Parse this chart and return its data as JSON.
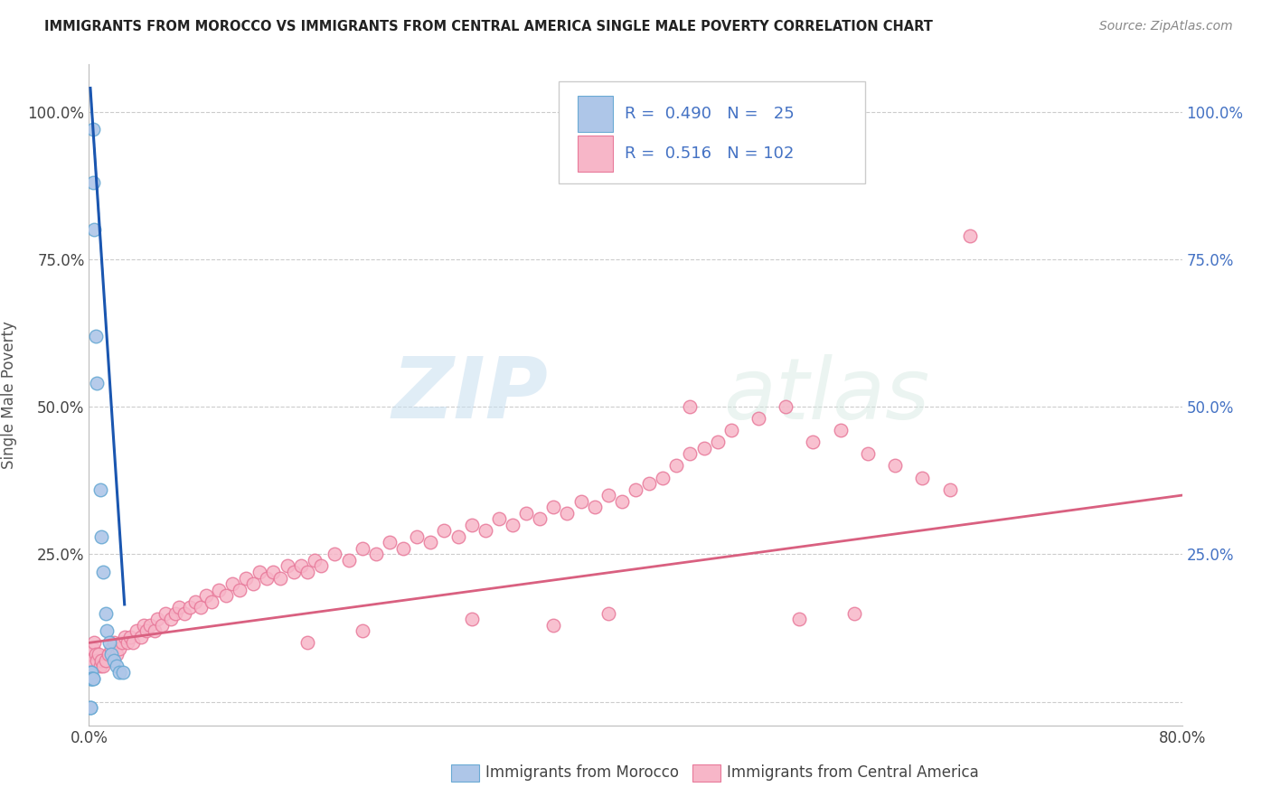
{
  "title": "IMMIGRANTS FROM MOROCCO VS IMMIGRANTS FROM CENTRAL AMERICA SINGLE MALE POVERTY CORRELATION CHART",
  "source": "Source: ZipAtlas.com",
  "ylabel": "Single Male Poverty",
  "x_min": 0.0,
  "x_max": 0.8,
  "y_min": -0.04,
  "y_max": 1.08,
  "morocco_color": "#aec6e8",
  "morocco_edge_color": "#6aaad4",
  "central_america_color": "#f7b6c8",
  "central_america_edge_color": "#e8799a",
  "trend_blue_color": "#1a56b0",
  "trend_pink_color": "#d96080",
  "legend_R_morocco": "0.490",
  "legend_N_morocco": "25",
  "legend_R_central": "0.516",
  "legend_N_central": "102",
  "legend_label_morocco": "Immigrants from Morocco",
  "legend_label_central": "Immigrants from Central America",
  "morocco_x": [
    0.003,
    0.003,
    0.004,
    0.005,
    0.006,
    0.008,
    0.009,
    0.01,
    0.012,
    0.013,
    0.015,
    0.016,
    0.018,
    0.02,
    0.022,
    0.025,
    0.001,
    0.001,
    0.002,
    0.002,
    0.002,
    0.003,
    0.003,
    0.001,
    0.001
  ],
  "morocco_y": [
    0.97,
    0.88,
    0.8,
    0.62,
    0.54,
    0.36,
    0.28,
    0.22,
    0.15,
    0.12,
    0.1,
    0.08,
    0.07,
    0.06,
    0.05,
    0.05,
    0.05,
    0.04,
    0.05,
    0.04,
    0.04,
    0.04,
    0.04,
    -0.01,
    -0.01
  ],
  "central_america_x": [
    0.001,
    0.002,
    0.003,
    0.004,
    0.005,
    0.006,
    0.007,
    0.008,
    0.009,
    0.01,
    0.012,
    0.014,
    0.016,
    0.018,
    0.02,
    0.022,
    0.024,
    0.026,
    0.028,
    0.03,
    0.032,
    0.035,
    0.038,
    0.04,
    0.042,
    0.045,
    0.048,
    0.05,
    0.053,
    0.056,
    0.06,
    0.063,
    0.066,
    0.07,
    0.074,
    0.078,
    0.082,
    0.086,
    0.09,
    0.095,
    0.1,
    0.105,
    0.11,
    0.115,
    0.12,
    0.125,
    0.13,
    0.135,
    0.14,
    0.145,
    0.15,
    0.155,
    0.16,
    0.165,
    0.17,
    0.18,
    0.19,
    0.2,
    0.21,
    0.22,
    0.23,
    0.24,
    0.25,
    0.26,
    0.27,
    0.28,
    0.29,
    0.3,
    0.31,
    0.32,
    0.33,
    0.34,
    0.35,
    0.36,
    0.37,
    0.38,
    0.39,
    0.4,
    0.41,
    0.42,
    0.43,
    0.44,
    0.45,
    0.46,
    0.47,
    0.49,
    0.51,
    0.53,
    0.55,
    0.57,
    0.59,
    0.61,
    0.63,
    0.645,
    0.44,
    0.38,
    0.52,
    0.56,
    0.34,
    0.28,
    0.2,
    0.16
  ],
  "central_america_y": [
    0.08,
    0.07,
    0.09,
    0.1,
    0.08,
    0.07,
    0.08,
    0.06,
    0.07,
    0.06,
    0.07,
    0.08,
    0.09,
    0.1,
    0.08,
    0.09,
    0.1,
    0.11,
    0.1,
    0.11,
    0.1,
    0.12,
    0.11,
    0.13,
    0.12,
    0.13,
    0.12,
    0.14,
    0.13,
    0.15,
    0.14,
    0.15,
    0.16,
    0.15,
    0.16,
    0.17,
    0.16,
    0.18,
    0.17,
    0.19,
    0.18,
    0.2,
    0.19,
    0.21,
    0.2,
    0.22,
    0.21,
    0.22,
    0.21,
    0.23,
    0.22,
    0.23,
    0.22,
    0.24,
    0.23,
    0.25,
    0.24,
    0.26,
    0.25,
    0.27,
    0.26,
    0.28,
    0.27,
    0.29,
    0.28,
    0.3,
    0.29,
    0.31,
    0.3,
    0.32,
    0.31,
    0.33,
    0.32,
    0.34,
    0.33,
    0.35,
    0.34,
    0.36,
    0.37,
    0.38,
    0.4,
    0.42,
    0.43,
    0.44,
    0.46,
    0.48,
    0.5,
    0.44,
    0.46,
    0.42,
    0.4,
    0.38,
    0.36,
    0.79,
    0.5,
    0.15,
    0.14,
    0.15,
    0.13,
    0.14,
    0.12,
    0.1
  ],
  "watermark_zip": "ZIP",
  "watermark_atlas": "atlas",
  "bg_color": "#ffffff",
  "grid_color": "#cccccc",
  "blue_text_color": "#4472c4"
}
